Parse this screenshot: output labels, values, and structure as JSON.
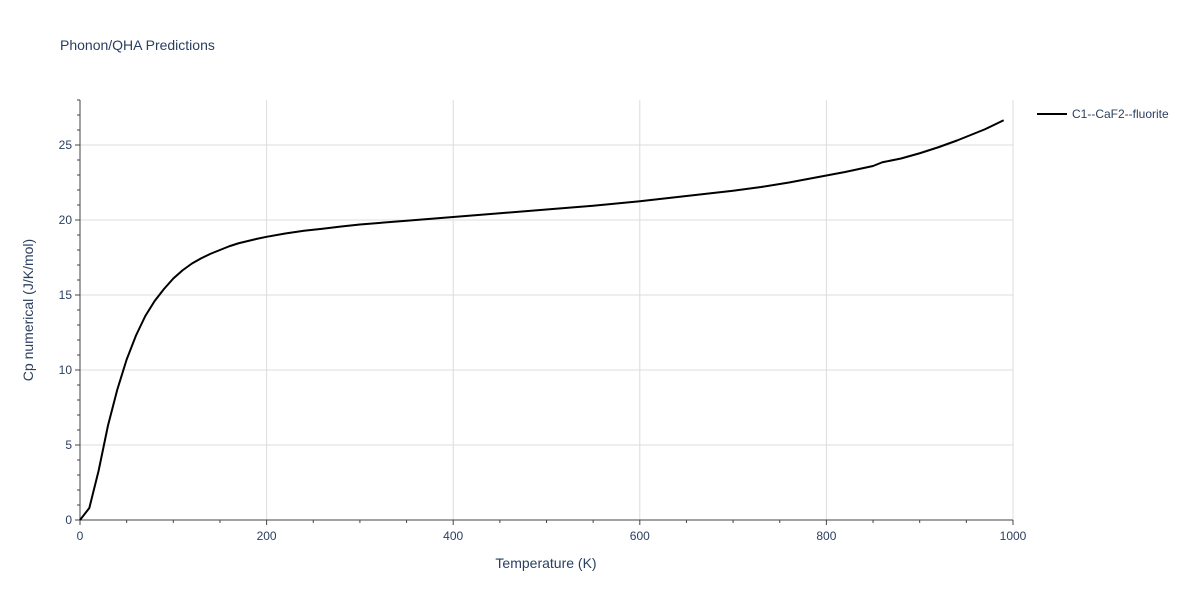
{
  "chart_data": {
    "type": "line",
    "title": "Phonon/QHA Predictions",
    "xlabel": "Temperature (K)",
    "ylabel": "Cp numerical (J/K/mol)",
    "xlim": [
      0,
      1000
    ],
    "ylim": [
      0,
      28
    ],
    "x_ticks": [
      0,
      200,
      400,
      600,
      800,
      1000
    ],
    "y_ticks": [
      0,
      5,
      10,
      15,
      20,
      25
    ],
    "grid": true,
    "legend_position": "top-right",
    "series": [
      {
        "name": "C1--CaF2--fluorite",
        "color": "#000000",
        "x": [
          0,
          10,
          20,
          30,
          40,
          50,
          60,
          70,
          80,
          90,
          100,
          110,
          120,
          130,
          140,
          150,
          160,
          170,
          180,
          190,
          200,
          220,
          240,
          260,
          280,
          300,
          350,
          400,
          450,
          500,
          550,
          600,
          650,
          700,
          730,
          760,
          790,
          820,
          850,
          860,
          880,
          900,
          920,
          940,
          950,
          960,
          970,
          980,
          990
        ],
        "y": [
          0,
          0.8,
          3.3,
          6.3,
          8.7,
          10.7,
          12.3,
          13.6,
          14.6,
          15.4,
          16.1,
          16.65,
          17.1,
          17.45,
          17.75,
          18.0,
          18.25,
          18.45,
          18.6,
          18.75,
          18.88,
          19.1,
          19.28,
          19.42,
          19.57,
          19.7,
          19.95,
          20.2,
          20.45,
          20.7,
          20.95,
          21.25,
          21.6,
          21.95,
          22.2,
          22.5,
          22.85,
          23.2,
          23.6,
          23.85,
          24.1,
          24.45,
          24.85,
          25.3,
          25.55,
          25.8,
          26.05,
          26.35,
          26.65
        ]
      }
    ]
  }
}
